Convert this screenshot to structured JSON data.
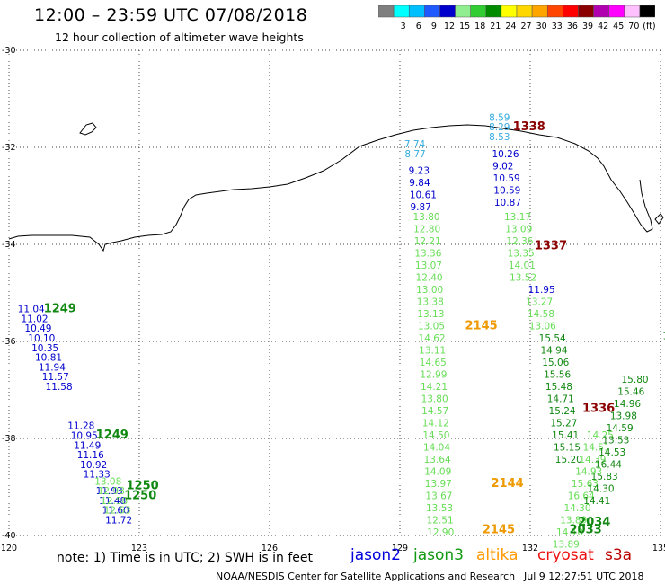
{
  "header": {
    "title": "12:00 – 23:59 UTC 07/08/2018",
    "subtitle": "12 hour collection of altimeter wave heights"
  },
  "legend": {
    "swatches": [
      {
        "color": "#7f7f7f",
        "label": ""
      },
      {
        "color": "#00ffff",
        "label": "3"
      },
      {
        "color": "#00bfff",
        "label": "6"
      },
      {
        "color": "#1e5aff",
        "label": "9"
      },
      {
        "color": "#0000cd",
        "label": "12"
      },
      {
        "color": "#90ee90",
        "label": "15"
      },
      {
        "color": "#32cd32",
        "label": "18"
      },
      {
        "color": "#008b00",
        "label": "21"
      },
      {
        "color": "#ffff00",
        "label": "24"
      },
      {
        "color": "#ffd700",
        "label": "27"
      },
      {
        "color": "#ffa500",
        "label": "30"
      },
      {
        "color": "#ff4500",
        "label": "33"
      },
      {
        "color": "#ff0000",
        "label": "36"
      },
      {
        "color": "#8b0000",
        "label": "39"
      },
      {
        "color": "#b000b0",
        "label": "42"
      },
      {
        "color": "#ff00ff",
        "label": "45"
      },
      {
        "color": "#ffc0ff",
        "label": "70"
      },
      {
        "color": "#000000",
        "label": "(ft)"
      }
    ]
  },
  "axes": {
    "x_ticks": [
      "120",
      "123",
      "126",
      "129",
      "132",
      "135"
    ],
    "y_ticks": [
      "-30",
      "-32",
      "-34",
      "-36",
      "-38",
      "-40"
    ],
    "lon_range": [
      120,
      135
    ],
    "lat_range": [
      -40,
      -30
    ]
  },
  "colors": {
    "light_blue": "#33aadd",
    "blue": "#0000cd",
    "light_green": "#66dd55",
    "dark_green": "#118811",
    "orange": "#ee9900",
    "dark_red": "#8b0000",
    "red": "#ee1111"
  },
  "tracks": [
    {
      "name": "jason3-west",
      "color": "blue",
      "lon": 120.2,
      "lat0": -35.4,
      "dlat": 0.2,
      "slope": 0.4,
      "values": [
        "11.04",
        "11.02",
        "10.49",
        "10.10",
        "10.35",
        "10.81",
        "11.94",
        "11.57",
        "11.58"
      ]
    },
    {
      "name": "jason3-west-south",
      "color": "blue",
      "lon": 121.35,
      "lat0": -37.81,
      "dlat": 0.2,
      "slope": 0.36,
      "values": [
        "11.28",
        "10.95",
        "11.49",
        "11.16",
        "10.92",
        "11.33"
      ]
    },
    {
      "name": "jason3-west-tail",
      "color": "blue",
      "lon": 122.0,
      "lat0": -39.15,
      "dlat": 0.2,
      "slope": 0.36,
      "values": [
        "11.93",
        "11.48",
        "11.60",
        "11.72"
      ]
    },
    {
      "name": "jason3-west-green",
      "color": "light_green",
      "lon": 121.97,
      "lat0": -38.95,
      "dlat": 0.2,
      "slope": 0.36,
      "values": [
        "13.08",
        "12.98",
        "12.58",
        "12.63"
      ]
    },
    {
      "name": "altika-2145-north",
      "color": "light_blue",
      "lon": 129.1,
      "lat0": -32.0,
      "dlat": 0.2,
      "slope": 0.05,
      "values": [
        "7.74",
        "8.77"
      ]
    },
    {
      "name": "altika-2145-blue",
      "color": "blue",
      "lon": 129.2,
      "lat0": -32.55,
      "dlat": 0.25,
      "slope": 0.05,
      "values": [
        "9.23",
        "9.84",
        "10.61",
        "9.87"
      ]
    },
    {
      "name": "altika-2145-green",
      "color": "light_green",
      "lon": 129.3,
      "lat0": -33.5,
      "dlat": 0.25,
      "slope": 0.05,
      "values": [
        "13.80",
        "12.80",
        "12.21",
        "13.36",
        "13.07",
        "12.40",
        "13.00",
        "13.38",
        "13.13",
        "13.05",
        "14.62",
        "13.11",
        "14.65",
        "12.99",
        "14.21",
        "13.80",
        "14.57",
        "14.12",
        "14.50",
        "14.04",
        "13.64",
        "14.09",
        "13.97",
        "13.67",
        "13.53",
        "12.51",
        "12.90"
      ]
    },
    {
      "name": "cryosat-1338-cyan",
      "color": "light_blue",
      "lon": 131.05,
      "lat0": -31.45,
      "dlat": 0.2,
      "slope": 0.0,
      "values": [
        "8.59",
        "8.29",
        "8.53"
      ]
    },
    {
      "name": "cryosat-1338-blue",
      "color": "blue",
      "lon": 131.12,
      "lat0": -32.2,
      "dlat": 0.25,
      "slope": 0.05,
      "values": [
        "10.26",
        "9.02",
        "10.59",
        "10.59",
        "10.87"
      ]
    },
    {
      "name": "cryosat-1338-green",
      "color": "light_green",
      "lon": 131.4,
      "lat0": -33.5,
      "dlat": 0.25,
      "slope": 0.1,
      "values": [
        "13.17",
        "13.09",
        "12.36",
        "13.35",
        "14.01",
        "13.52"
      ]
    },
    {
      "name": "cryosat-1337",
      "color": "blue",
      "lon": 131.95,
      "lat0": -35.0,
      "dlat": 0.25,
      "slope": 0.1,
      "values": [
        "11.95"
      ]
    },
    {
      "name": "cryosat-1337-green",
      "color": "light_green",
      "lon": 131.9,
      "lat0": -35.25,
      "dlat": 0.25,
      "slope": 0.15,
      "values": [
        "13.27",
        "14.58",
        "13.06"
      ]
    },
    {
      "name": "cryosat-1337-deep",
      "color": "dark_green",
      "lon": 132.2,
      "lat0": -36.0,
      "dlat": 0.25,
      "slope": 0.15,
      "values": [
        "15.54",
        "14.94",
        "15.06",
        "15.56",
        "15.48",
        "14.71",
        "15.24",
        "15.27",
        "15.41",
        "15.15",
        "15.20"
      ]
    },
    {
      "name": "cryosat-1336-green",
      "color": "light_green",
      "lon": 133.3,
      "lat0": -38.0,
      "dlat": 0.25,
      "slope": -0.35,
      "values": [
        "14.25",
        "14.51",
        "14.39",
        "14.93",
        "15.63",
        "16.64",
        "14.30",
        "13.89",
        "14.10",
        "13.89"
      ]
    },
    {
      "name": "s3a-2034",
      "color": "dark_green",
      "lon": 134.1,
      "lat0": -36.85,
      "dlat": 0.25,
      "slope": -0.35,
      "values": [
        "15.80",
        "15.46",
        "14.96",
        "13.98",
        "14.59",
        "13.53",
        "14.53",
        "16.44",
        "15.83",
        "14.30",
        "14.41"
      ]
    },
    {
      "name": "s3a-east",
      "color": "dark_green",
      "lon": 135.05,
      "lat0": -35.95,
      "dlat": 0.25,
      "slope": 0.35,
      "values": [
        "15.7",
        "15.02",
        "15.33",
        "15.94",
        "15.53",
        "15.89",
        "15.72"
      ]
    }
  ],
  "passes": [
    {
      "label": "1249",
      "lon": 120.8,
      "lat": -35.4,
      "color": "dark_green"
    },
    {
      "label": "1249",
      "lon": 122.0,
      "lat": -38.0,
      "color": "dark_green"
    },
    {
      "label": "1250",
      "lon": 122.7,
      "lat": -39.05,
      "color": "dark_green"
    },
    {
      "label": "1250",
      "lon": 122.65,
      "lat": -39.25,
      "color": "dark_green"
    },
    {
      "label": "2145",
      "lon": 130.5,
      "lat": -35.75,
      "color": "orange"
    },
    {
      "label": "2144",
      "lon": 131.1,
      "lat": -39.0,
      "color": "orange"
    },
    {
      "label": "2145",
      "lon": 130.9,
      "lat": -39.95,
      "color": "orange"
    },
    {
      "label": "1338",
      "lon": 131.6,
      "lat": -31.65,
      "color": "dark_red"
    },
    {
      "label": "1337",
      "lon": 132.1,
      "lat": -34.1,
      "color": "dark_red"
    },
    {
      "label": "1336",
      "lon": 133.2,
      "lat": -37.45,
      "color": "dark_red"
    },
    {
      "label": "2034",
      "lon": 133.1,
      "lat": -39.8,
      "color": "dark_green"
    },
    {
      "label": "2033",
      "lon": 132.9,
      "lat": -39.95,
      "color": "dark_green"
    }
  ],
  "footer": {
    "note": "note:  1) Time is in UTC;  2) SWH is in feet",
    "satellites": [
      {
        "label": "jason2",
        "color": "#0000dd",
        "left": 0
      },
      {
        "label": "jason3",
        "color": "#119911",
        "left": 1
      },
      {
        "label": "altika",
        "color": "#ff9900",
        "left": 2
      },
      {
        "label": "cryosat",
        "color": "#ee1111",
        "left": 3
      },
      {
        "label": "s3a",
        "color": "#bb0000",
        "left": 4
      }
    ],
    "credit": "NOAA/NESDIS Center for Satellite Applications and Research",
    "timestamp": "Jul  9 12:27:51 UTC 2018"
  }
}
